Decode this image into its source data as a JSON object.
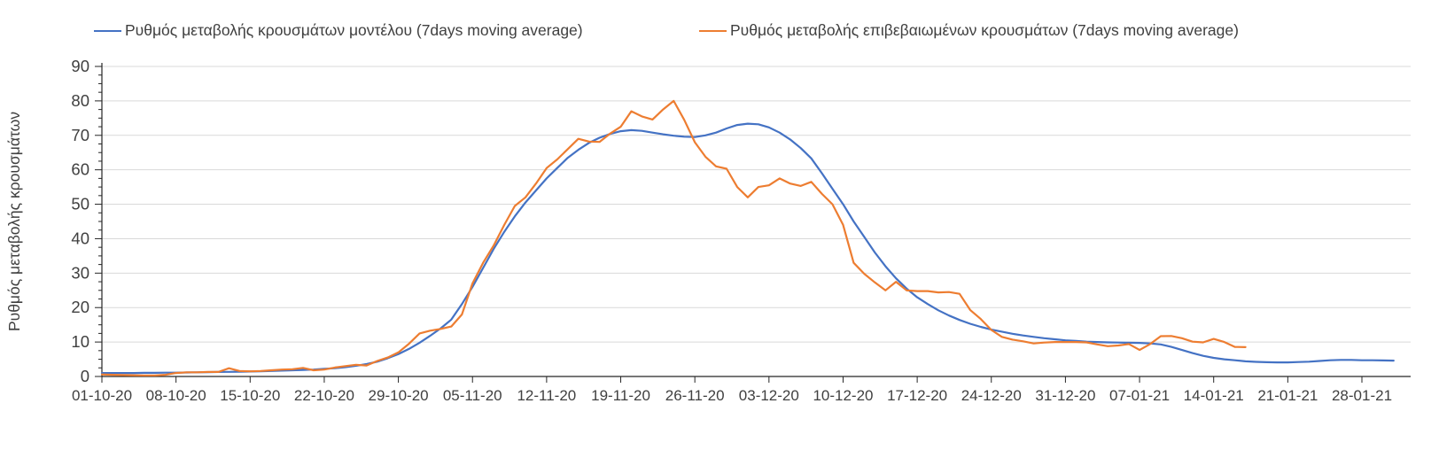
{
  "chart_data": {
    "type": "line",
    "title": "",
    "xlabel": "",
    "ylabel": "Ρυθμός μεταβολής κρουσμάτων",
    "ylim": [
      0,
      90
    ],
    "y_major_step": 10,
    "y_minor_step": 2.5,
    "y_ticks": [
      0,
      10,
      20,
      30,
      40,
      50,
      60,
      70,
      80,
      90
    ],
    "grid": "horizontal-major",
    "legend_position": "top",
    "x_unit": "days",
    "x_tick_interval_days": 7,
    "x_tick_labels": [
      "01-10-20",
      "08-10-20",
      "15-10-20",
      "22-10-20",
      "29-10-20",
      "05-11-20",
      "12-11-20",
      "19-11-20",
      "26-11-20",
      "03-12-20",
      "10-12-20",
      "17-12-20",
      "24-12-20",
      "31-12-20",
      "07-01-21",
      "14-01-21",
      "21-01-21",
      "28-01-21"
    ],
    "colors": {
      "series_model": "#4472C4",
      "series_confirmed": "#ED7D31",
      "gridline": "#D9D9D9",
      "axis": "#262626",
      "tick_text": "#404040"
    },
    "series": [
      {
        "name": "Ρυθμός μεταβολής κρουσμάτων μοντέλου (7days moving average)",
        "color": "#4472C4",
        "start_day": 0,
        "values": [
          1.0,
          1.0,
          1.0,
          1.0,
          1.05,
          1.05,
          1.1,
          1.1,
          1.15,
          1.2,
          1.25,
          1.3,
          1.35,
          1.4,
          1.45,
          1.5,
          1.6,
          1.7,
          1.8,
          1.9,
          2.0,
          2.2,
          2.4,
          2.7,
          3.1,
          3.6,
          4.3,
          5.3,
          6.5,
          8.0,
          9.8,
          11.8,
          14.0,
          16.5,
          21.0,
          26.0,
          31.5,
          37.0,
          42.0,
          46.5,
          50.5,
          54.0,
          57.5,
          60.5,
          63.5,
          65.8,
          67.8,
          69.3,
          70.4,
          71.2,
          71.5,
          71.3,
          70.8,
          70.3,
          69.9,
          69.6,
          69.5,
          70.0,
          70.8,
          72.0,
          73.0,
          73.4,
          73.2,
          72.3,
          70.8,
          68.8,
          66.3,
          63.3,
          59.0,
          54.5,
          50.0,
          45.0,
          40.5,
          36.0,
          32.0,
          28.5,
          25.5,
          23.0,
          21.0,
          19.2,
          17.7,
          16.4,
          15.3,
          14.4,
          13.6,
          13.0,
          12.4,
          11.9,
          11.5,
          11.1,
          10.8,
          10.5,
          10.3,
          10.1,
          10.0,
          9.9,
          9.85,
          9.8,
          9.75,
          9.6,
          9.3,
          8.6,
          7.7,
          6.8,
          6.0,
          5.4,
          5.0,
          4.7,
          4.4,
          4.25,
          4.15,
          4.1,
          4.1,
          4.2,
          4.3,
          4.5,
          4.7,
          4.8,
          4.8,
          4.7,
          4.7,
          4.65,
          4.6
        ]
      },
      {
        "name": "Ρυθμός μεταβολής επιβεβαιωμένων κρουσμάτων (7days moving average)",
        "color": "#ED7D31",
        "start_day": 0,
        "values": [
          0.6,
          0.5,
          0.4,
          0.35,
          0.3,
          0.3,
          0.5,
          1.0,
          1.2,
          1.2,
          1.3,
          1.3,
          2.4,
          1.6,
          1.5,
          1.6,
          1.8,
          2.0,
          2.1,
          2.5,
          1.8,
          2.0,
          2.6,
          3.0,
          3.4,
          3.2,
          4.5,
          5.5,
          7.0,
          9.5,
          12.5,
          13.3,
          13.8,
          14.5,
          18.0,
          27.0,
          33.0,
          38.0,
          44.0,
          49.5,
          52.0,
          56.0,
          60.5,
          63.0,
          66.0,
          69.0,
          68.2,
          68.1,
          70.5,
          72.5,
          77.0,
          75.5,
          74.6,
          77.5,
          80.0,
          74.5,
          68.0,
          63.8,
          61.0,
          60.3,
          55.0,
          52.0,
          55.0,
          55.5,
          57.5,
          56.0,
          55.3,
          56.5,
          53.0,
          50.0,
          44.0,
          33.0,
          29.8,
          27.3,
          25.0,
          27.5,
          25.0,
          24.8,
          24.8,
          24.4,
          24.5,
          24.0,
          19.3,
          16.7,
          13.5,
          11.5,
          10.7,
          10.2,
          9.6,
          9.85,
          10.0,
          10.0,
          10.0,
          9.9,
          9.3,
          8.8,
          9.0,
          9.4,
          7.7,
          9.4,
          11.7,
          11.75,
          11.1,
          10.1,
          9.9,
          10.9,
          10.0,
          8.6,
          8.5
        ]
      }
    ]
  }
}
